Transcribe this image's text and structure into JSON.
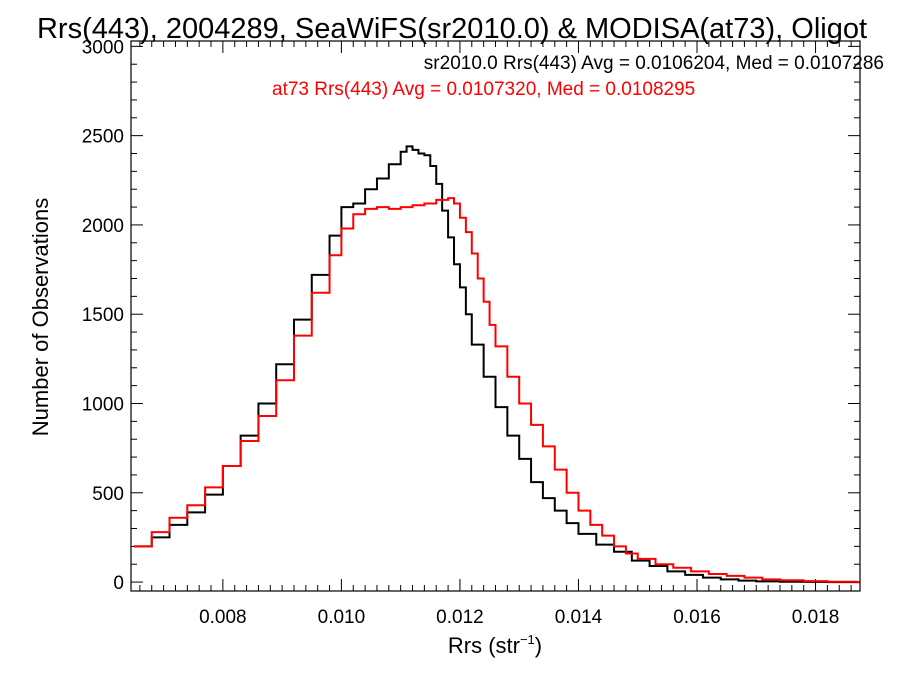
{
  "chart_data": {
    "type": "line",
    "title": "Rrs(443), 2004289, SeaWiFS(sr2010.0) & MODISA(at73), Oligot",
    "xlabel_main": "Rrs (str",
    "xlabel_sup": "−1",
    "xlabel_close": ")",
    "ylabel": "Number of Observations",
    "xlim": [
      0.00645,
      0.01875
    ],
    "ylim": [
      -50,
      3030
    ],
    "xticks": [
      0.008,
      0.01,
      0.012,
      0.014,
      0.016,
      0.018
    ],
    "xtick_labels": [
      "0.008",
      "0.010",
      "0.012",
      "0.014",
      "0.016",
      "0.018"
    ],
    "yticks": [
      0,
      500,
      1000,
      1500,
      2000,
      2500,
      3000
    ],
    "ytick_labels": [
      "0",
      "500",
      "1000",
      "1500",
      "2000",
      "2500",
      "3000"
    ],
    "grid": false,
    "legend_placement": "top-right",
    "series": [
      {
        "name": "sr2010.0 Rrs(443) Avg = 0.0106204, Med = 0.0107286",
        "color": "#000000",
        "x": [
          0.0065,
          0.0068,
          0.0071,
          0.0074,
          0.0077,
          0.008,
          0.0083,
          0.0086,
          0.0089,
          0.0092,
          0.0095,
          0.0098,
          0.01,
          0.0102,
          0.0104,
          0.0106,
          0.0108,
          0.011,
          0.0111,
          0.0112,
          0.0113,
          0.0114,
          0.0115,
          0.0116,
          0.0117,
          0.0118,
          0.0119,
          0.012,
          0.0121,
          0.0122,
          0.0124,
          0.0126,
          0.0128,
          0.013,
          0.0132,
          0.0134,
          0.0136,
          0.0138,
          0.014,
          0.0143,
          0.0146,
          0.0149,
          0.0152,
          0.0155,
          0.0158,
          0.0161,
          0.0164,
          0.0167,
          0.017,
          0.0174,
          0.0178,
          0.0182,
          0.0187
        ],
        "y": [
          200,
          250,
          320,
          390,
          490,
          650,
          820,
          1000,
          1220,
          1470,
          1720,
          1940,
          2100,
          2120,
          2200,
          2260,
          2340,
          2410,
          2440,
          2420,
          2400,
          2390,
          2330,
          2230,
          2080,
          1930,
          1780,
          1650,
          1500,
          1330,
          1150,
          980,
          820,
          690,
          560,
          470,
          400,
          330,
          270,
          210,
          170,
          120,
          90,
          60,
          40,
          25,
          15,
          8,
          4,
          2,
          1,
          0,
          0
        ]
      },
      {
        "name": "at73 Rrs(443) Avg = 0.0107320, Med = 0.0108295",
        "color": "#ff0000",
        "x": [
          0.0065,
          0.0068,
          0.0071,
          0.0074,
          0.0077,
          0.008,
          0.0083,
          0.0086,
          0.0089,
          0.0092,
          0.0095,
          0.0098,
          0.01,
          0.0102,
          0.0104,
          0.0106,
          0.0108,
          0.011,
          0.0112,
          0.0114,
          0.0116,
          0.0118,
          0.0119,
          0.012,
          0.0121,
          0.0122,
          0.0123,
          0.0124,
          0.0125,
          0.0126,
          0.0128,
          0.013,
          0.0132,
          0.0134,
          0.0136,
          0.0138,
          0.014,
          0.0142,
          0.0144,
          0.0146,
          0.0148,
          0.015,
          0.0153,
          0.0156,
          0.0159,
          0.0162,
          0.0165,
          0.0168,
          0.0171,
          0.0174,
          0.0178,
          0.0182,
          0.0187
        ],
        "y": [
          200,
          280,
          360,
          430,
          530,
          650,
          790,
          930,
          1130,
          1380,
          1620,
          1830,
          1980,
          2060,
          2090,
          2100,
          2090,
          2100,
          2110,
          2120,
          2140,
          2150,
          2120,
          2040,
          1960,
          1840,
          1700,
          1570,
          1440,
          1320,
          1150,
          1000,
          880,
          760,
          630,
          500,
          400,
          320,
          260,
          200,
          160,
          130,
          100,
          80,
          60,
          45,
          35,
          25,
          15,
          10,
          5,
          2,
          0
        ]
      }
    ]
  }
}
